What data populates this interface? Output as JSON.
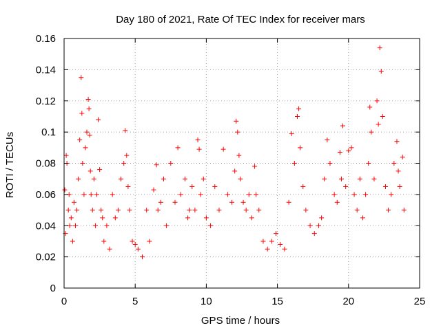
{
  "chart_data": {
    "type": "scatter",
    "title": "Day 180 of 2021, Rate Of TEC Index for receiver mars",
    "xlabel": "GPS time / hours",
    "ylabel": "ROTI / TECUs",
    "xlim": [
      0,
      25
    ],
    "ylim": [
      0,
      0.16
    ],
    "xticks": [
      0,
      5,
      10,
      15,
      20,
      25
    ],
    "xtick_labels": [
      "0",
      "5",
      "10",
      "15",
      "20",
      "25"
    ],
    "yticks": [
      0,
      0.02,
      0.04,
      0.06,
      0.08,
      0.1,
      0.12,
      0.14,
      0.16
    ],
    "ytick_labels": [
      "0",
      "0.02",
      "0.04",
      "0.06",
      "0.08",
      "0.1",
      "0.12",
      "0.14",
      "0.16"
    ],
    "grid": true,
    "marker": "+",
    "color": "#ff0000",
    "series": [
      {
        "x": [
          0.05,
          0.1,
          0.15,
          0.2,
          0.3,
          0.35,
          0.4,
          0.5,
          0.6,
          0.7,
          0.8,
          0.9,
          1.0,
          1.1,
          1.2,
          1.25,
          1.3,
          1.4,
          1.5,
          1.6,
          1.7,
          1.75,
          1.8,
          1.85,
          1.9,
          2.0,
          2.1,
          2.2,
          2.3,
          2.4,
          2.5,
          2.6,
          2.7,
          2.8,
          3.0,
          3.2,
          3.4,
          3.6,
          3.8,
          4.0,
          4.2,
          4.3,
          4.4,
          4.5,
          4.6,
          4.8,
          5.0,
          5.2,
          5.5,
          5.8,
          6.0,
          6.3,
          6.5,
          6.6,
          6.8,
          7.0,
          7.2,
          7.5,
          7.8,
          8.0,
          8.2,
          8.5,
          8.7,
          8.8,
          9.0,
          9.2,
          9.4,
          9.5,
          9.6,
          9.8,
          10.0,
          10.3,
          10.6,
          10.9,
          11.2,
          11.5,
          11.8,
          12.0,
          12.1,
          12.2,
          12.3,
          12.4,
          12.6,
          12.8,
          13.0,
          13.2,
          13.4,
          13.5,
          13.7,
          14.0,
          14.3,
          14.6,
          14.9,
          15.2,
          15.5,
          15.8,
          16.0,
          16.2,
          16.4,
          16.5,
          16.6,
          16.8,
          17.0,
          17.3,
          17.6,
          17.9,
          18.1,
          18.3,
          18.5,
          18.7,
          19.0,
          19.2,
          19.4,
          19.5,
          19.6,
          19.8,
          20.0,
          20.2,
          20.4,
          20.6,
          20.8,
          21.0,
          21.2,
          21.4,
          21.5,
          21.6,
          21.8,
          22.0,
          22.1,
          22.2,
          22.3,
          22.4,
          22.6,
          22.8,
          23.0,
          23.2,
          23.4,
          23.5,
          23.6,
          23.8,
          23.9
        ],
        "y": [
          0.063,
          0.035,
          0.085,
          0.08,
          0.05,
          0.06,
          0.04,
          0.045,
          0.03,
          0.055,
          0.04,
          0.05,
          0.07,
          0.095,
          0.135,
          0.112,
          0.08,
          0.06,
          0.09,
          0.1,
          0.121,
          0.115,
          0.098,
          0.075,
          0.06,
          0.05,
          0.07,
          0.04,
          0.06,
          0.108,
          0.076,
          0.05,
          0.045,
          0.03,
          0.04,
          0.025,
          0.06,
          0.045,
          0.05,
          0.07,
          0.08,
          0.101,
          0.085,
          0.065,
          0.05,
          0.03,
          0.028,
          0.025,
          0.02,
          0.05,
          0.03,
          0.063,
          0.079,
          0.05,
          0.055,
          0.07,
          0.04,
          0.08,
          0.055,
          0.09,
          0.06,
          0.07,
          0.045,
          0.05,
          0.065,
          0.05,
          0.095,
          0.089,
          0.06,
          0.07,
          0.045,
          0.04,
          0.065,
          0.05,
          0.089,
          0.06,
          0.055,
          0.075,
          0.107,
          0.1,
          0.085,
          0.07,
          0.055,
          0.05,
          0.06,
          0.045,
          0.078,
          0.06,
          0.05,
          0.03,
          0.025,
          0.03,
          0.035,
          0.028,
          0.025,
          0.055,
          0.099,
          0.08,
          0.11,
          0.115,
          0.09,
          0.065,
          0.05,
          0.04,
          0.035,
          0.04,
          0.045,
          0.07,
          0.095,
          0.08,
          0.06,
          0.055,
          0.087,
          0.07,
          0.104,
          0.065,
          0.088,
          0.09,
          0.06,
          0.05,
          0.07,
          0.045,
          0.06,
          0.08,
          0.116,
          0.1,
          0.07,
          0.12,
          0.105,
          0.154,
          0.139,
          0.11,
          0.065,
          0.05,
          0.06,
          0.08,
          0.094,
          0.075,
          0.065,
          0.084,
          0.05
        ]
      }
    ]
  }
}
